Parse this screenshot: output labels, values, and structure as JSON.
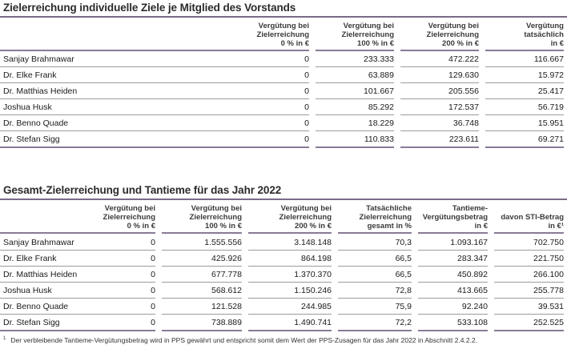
{
  "table1": {
    "title": "Zielerreichung individuelle Ziele je Mitglied des Vorstands",
    "headers": [
      [
        "Vergütung bei",
        "Zielerreichung",
        "0 % in €"
      ],
      [
        "Vergütung bei",
        "Zielerreichung",
        "100 % in €"
      ],
      [
        "Vergütung bei",
        "Zielerreichung",
        "200 % in €"
      ],
      [
        "Vergütung",
        "tatsächlich",
        "in €"
      ]
    ],
    "rows": [
      {
        "name": "Sanjay Brahmawar",
        "values": [
          "0",
          "233.333",
          "472.222",
          "116.667"
        ]
      },
      {
        "name": "Dr. Elke Frank",
        "values": [
          "0",
          "63.889",
          "129.630",
          "15.972"
        ]
      },
      {
        "name": "Dr. Matthias Heiden",
        "values": [
          "0",
          "101.667",
          "205.556",
          "25.417"
        ]
      },
      {
        "name": "Joshua Husk",
        "values": [
          "0",
          "85.292",
          "172.537",
          "56.719"
        ]
      },
      {
        "name": "Dr. Benno Quade",
        "values": [
          "0",
          "18.229",
          "36.748",
          "15.951"
        ]
      },
      {
        "name": "Dr. Stefan Sigg",
        "values": [
          "0",
          "110.833",
          "223.611",
          "69.271"
        ]
      }
    ]
  },
  "table2": {
    "title": "Gesamt-Zielerreichung und Tantieme für das Jahr 2022",
    "headers": [
      [
        "Vergütung bei",
        "Zielerreichung",
        "0 % in €"
      ],
      [
        "Vergütung bei",
        "Zielerreichung",
        "100 % in €"
      ],
      [
        "Vergütung bei",
        "Zielerreichung",
        "200 % in €"
      ],
      [
        "Tatsächliche",
        "Zielerreichung",
        "gesamt in %"
      ],
      [
        "Tantieme-",
        "Vergütungsbetrag",
        "in €"
      ],
      [
        "davon STI-Betrag",
        "in €¹"
      ]
    ],
    "rows": [
      {
        "name": "Sanjay Brahmawar",
        "values": [
          "0",
          "1.555.556",
          "3.148.148",
          "70,3",
          "1.093.167",
          "702.750"
        ]
      },
      {
        "name": "Dr. Elke Frank",
        "values": [
          "0",
          "425.926",
          "864.198",
          "66,5",
          "283.347",
          "221.750"
        ]
      },
      {
        "name": "Dr. Matthias Heiden",
        "values": [
          "0",
          "677.778",
          "1.370.370",
          "66,5",
          "450.892",
          "266.100"
        ]
      },
      {
        "name": "Joshua Husk",
        "values": [
          "0",
          "568.612",
          "1.150.246",
          "72,8",
          "413.665",
          "255.778"
        ]
      },
      {
        "name": "Dr. Benno Quade",
        "values": [
          "0",
          "121.528",
          "244.985",
          "75,9",
          "92.240",
          "39.531"
        ]
      },
      {
        "name": "Dr. Stefan Sigg",
        "values": [
          "0",
          "738.889",
          "1.490.741",
          "72,2",
          "533.108",
          "252.525"
        ]
      }
    ]
  },
  "footnote": {
    "marker": "1",
    "text": "Der verbleibende Tantieme-Vergütungsbetrag wird in PPS gewährt und entspricht somit dem Wert der PPS-Zusagen für das Jahr 2022 in Abschnitt 2.4.2.2."
  }
}
